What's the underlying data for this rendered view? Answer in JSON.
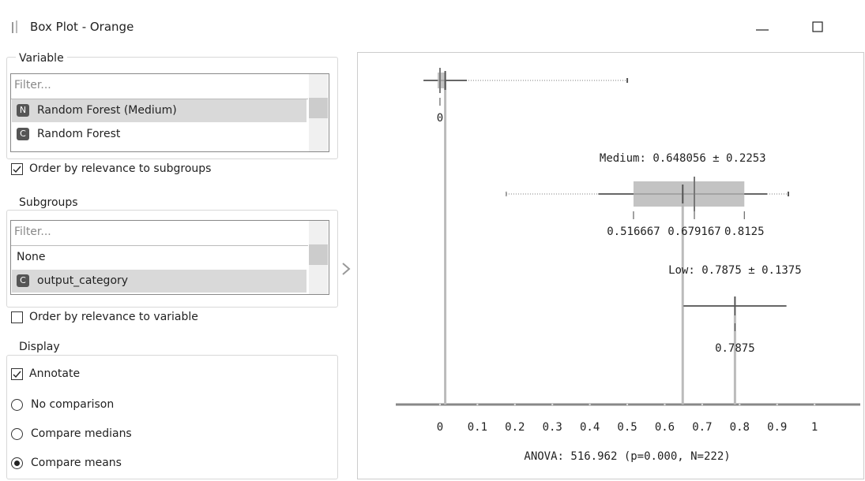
{
  "window": {
    "title": "Box Plot - Orange"
  },
  "variable": {
    "label": "Variable",
    "filter_placeholder": "Filter...",
    "items": [
      {
        "icon": "N",
        "label": "Random Forest (Medium)",
        "selected": true
      },
      {
        "icon": "C",
        "label": "Random Forest",
        "selected": false
      }
    ],
    "order_checkbox": {
      "label": "Order by relevance to subgroups",
      "checked": true
    }
  },
  "subgroups": {
    "label": "Subgroups",
    "filter_placeholder": "Filter...",
    "items": [
      {
        "label": "None",
        "selected": false
      },
      {
        "icon": "C",
        "label": "output_category",
        "selected": true
      }
    ],
    "order_checkbox": {
      "label": "Order by relevance to variable",
      "checked": false
    }
  },
  "display": {
    "label": "Display",
    "annotate": {
      "label": "Annotate",
      "checked": true
    },
    "options": [
      "No comparison",
      "Compare medians",
      "Compare means"
    ],
    "selected_option": 2
  },
  "chart_data": {
    "type": "box",
    "groups": [
      {
        "mean": 0.014,
        "sd": 0.058,
        "min": 0,
        "max": 0.5,
        "q1": 0,
        "median": 0,
        "q3": 0.01
      },
      {
        "label": "Medium: 0.648056 ± 0.2253",
        "mean": 0.648056,
        "sd": 0.2253,
        "min": 0.177,
        "max": 0.93,
        "q1": 0.516667,
        "median": 0.679167,
        "q3": 0.8125
      },
      {
        "label": "Low: 0.7875 ± 0.1375",
        "mean": 0.7875,
        "sd": 0.1375
      }
    ],
    "xlim": [
      -0.118,
      1.122
    ],
    "xticks": [
      0,
      0.1,
      0.2,
      0.3,
      0.4,
      0.5,
      0.6,
      0.7,
      0.8,
      0.9,
      1
    ],
    "footer": "ANOVA: 516.962 (p=0.000, N=222)"
  }
}
